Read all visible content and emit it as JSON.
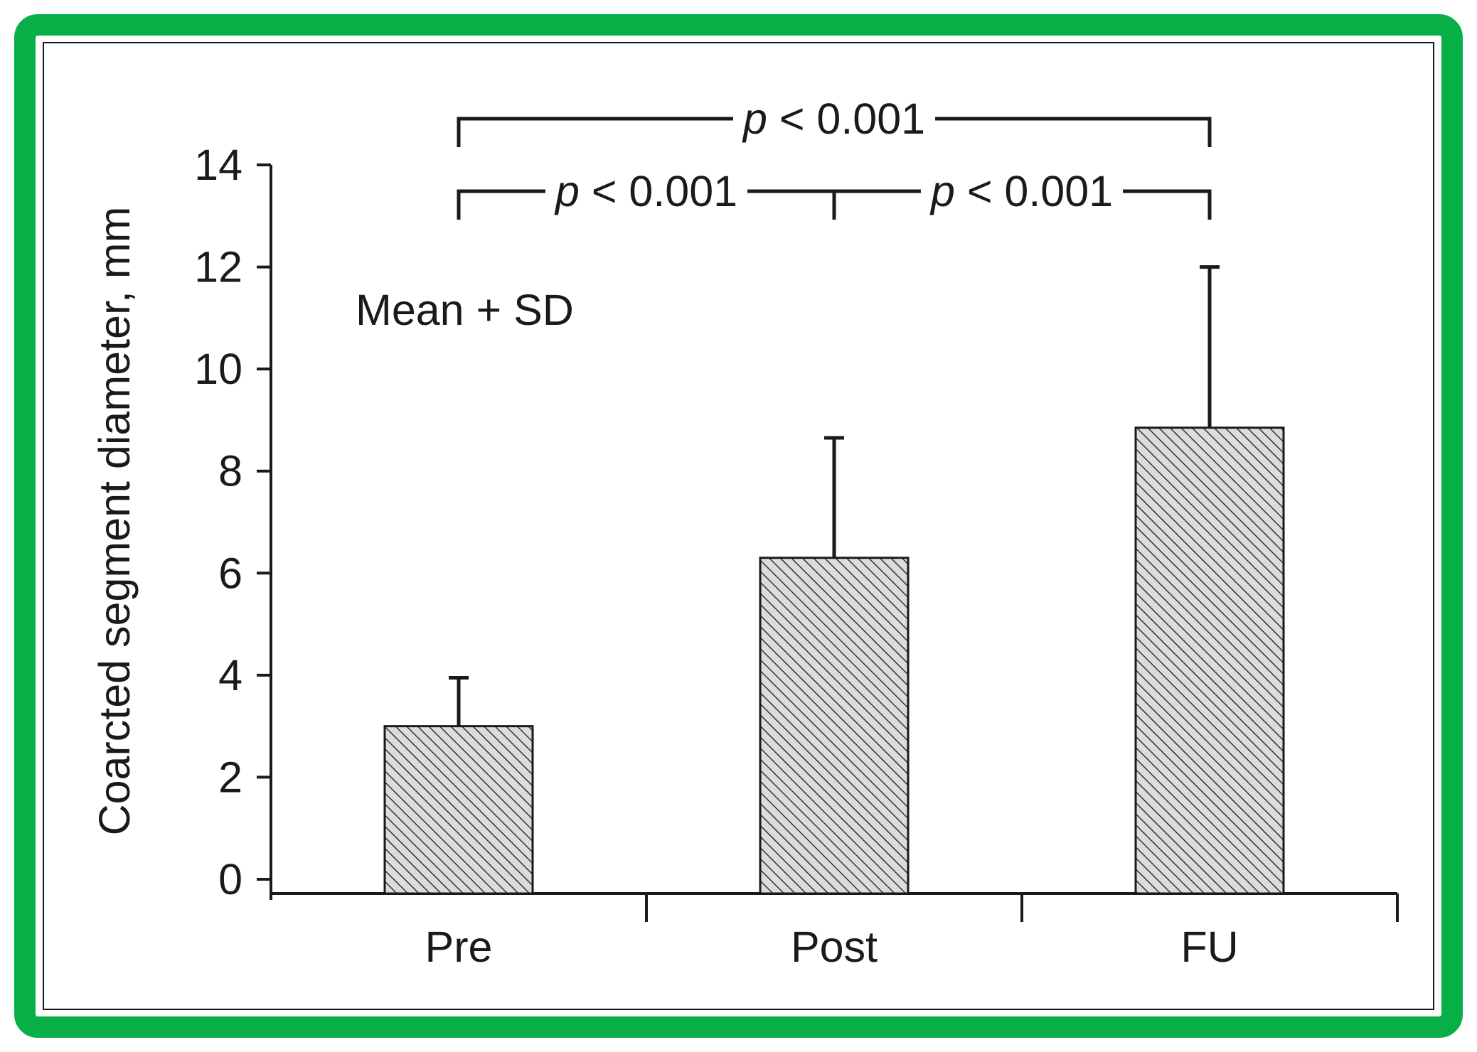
{
  "colors": {
    "frame": "#07b047",
    "axis": "#1a1a1a",
    "bar_fill": "#dcdcdc",
    "hatch": "#333333"
  },
  "chart_data": {
    "type": "bar",
    "categories": [
      "Pre",
      "Post",
      "FU"
    ],
    "values": [
      3.0,
      6.3,
      8.85
    ],
    "errors": [
      0.95,
      2.35,
      3.15
    ],
    "ylabel": "Coarcted segment diameter, mm",
    "xlabel": "",
    "ylim": [
      0,
      14
    ],
    "yticks": [
      "0",
      "2",
      "4",
      "6",
      "8",
      "10",
      "12",
      "14"
    ],
    "annotation": "Mean + SD",
    "grid": false,
    "bar_pattern": "diagonal hatch",
    "significance": [
      {
        "from": "Pre",
        "to": "FU",
        "p_symbol": "p",
        "p_text": " < 0.001"
      },
      {
        "from": "Pre",
        "to": "Post",
        "p_symbol": "p",
        "p_text": " < 0.001"
      },
      {
        "from": "Post",
        "to": "FU",
        "p_symbol": "p",
        "p_text": " < 0.001"
      }
    ]
  }
}
